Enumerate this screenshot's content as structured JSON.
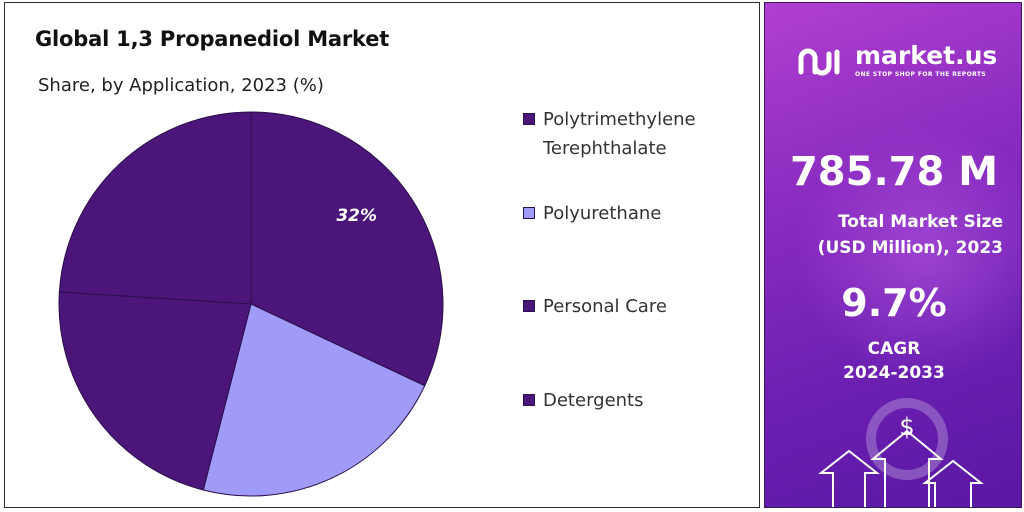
{
  "chart_data": {
    "type": "pie",
    "title": "Global 1,3 Propanediol Market",
    "subtitle": "Share, by Application, 2023 (%)",
    "categories": [
      "Polytrimethylene Terephthalate",
      "Polyurethane",
      "Personal Care",
      "Detergents"
    ],
    "values": [
      32,
      22,
      22,
      24
    ],
    "data_labels": [
      "32%",
      "",
      "",
      ""
    ],
    "colors": [
      "#4b157a",
      "#a09af8",
      "#4b157a",
      "#4b157a"
    ],
    "legend_position": "right",
    "start_angle_deg": 0,
    "direction": "clockwise"
  },
  "info_panel": {
    "brand_name": "market.us",
    "brand_tagline": "ONE STOP SHOP FOR THE REPORTS",
    "market_size_value": "785.78 M",
    "market_size_label_line1": "Total Market Size",
    "market_size_label_line2": "(USD Million), 2023",
    "cagr_value": "9.7%",
    "cagr_label_line1": "CAGR",
    "cagr_label_line2": "2024-2033",
    "currency_symbol": "$",
    "background_colors": [
      "#b13fd1",
      "#5a18a4"
    ]
  },
  "icons": [
    "market-us-logo-icon",
    "dollar-coin-icon",
    "growth-arrows-icon"
  ]
}
